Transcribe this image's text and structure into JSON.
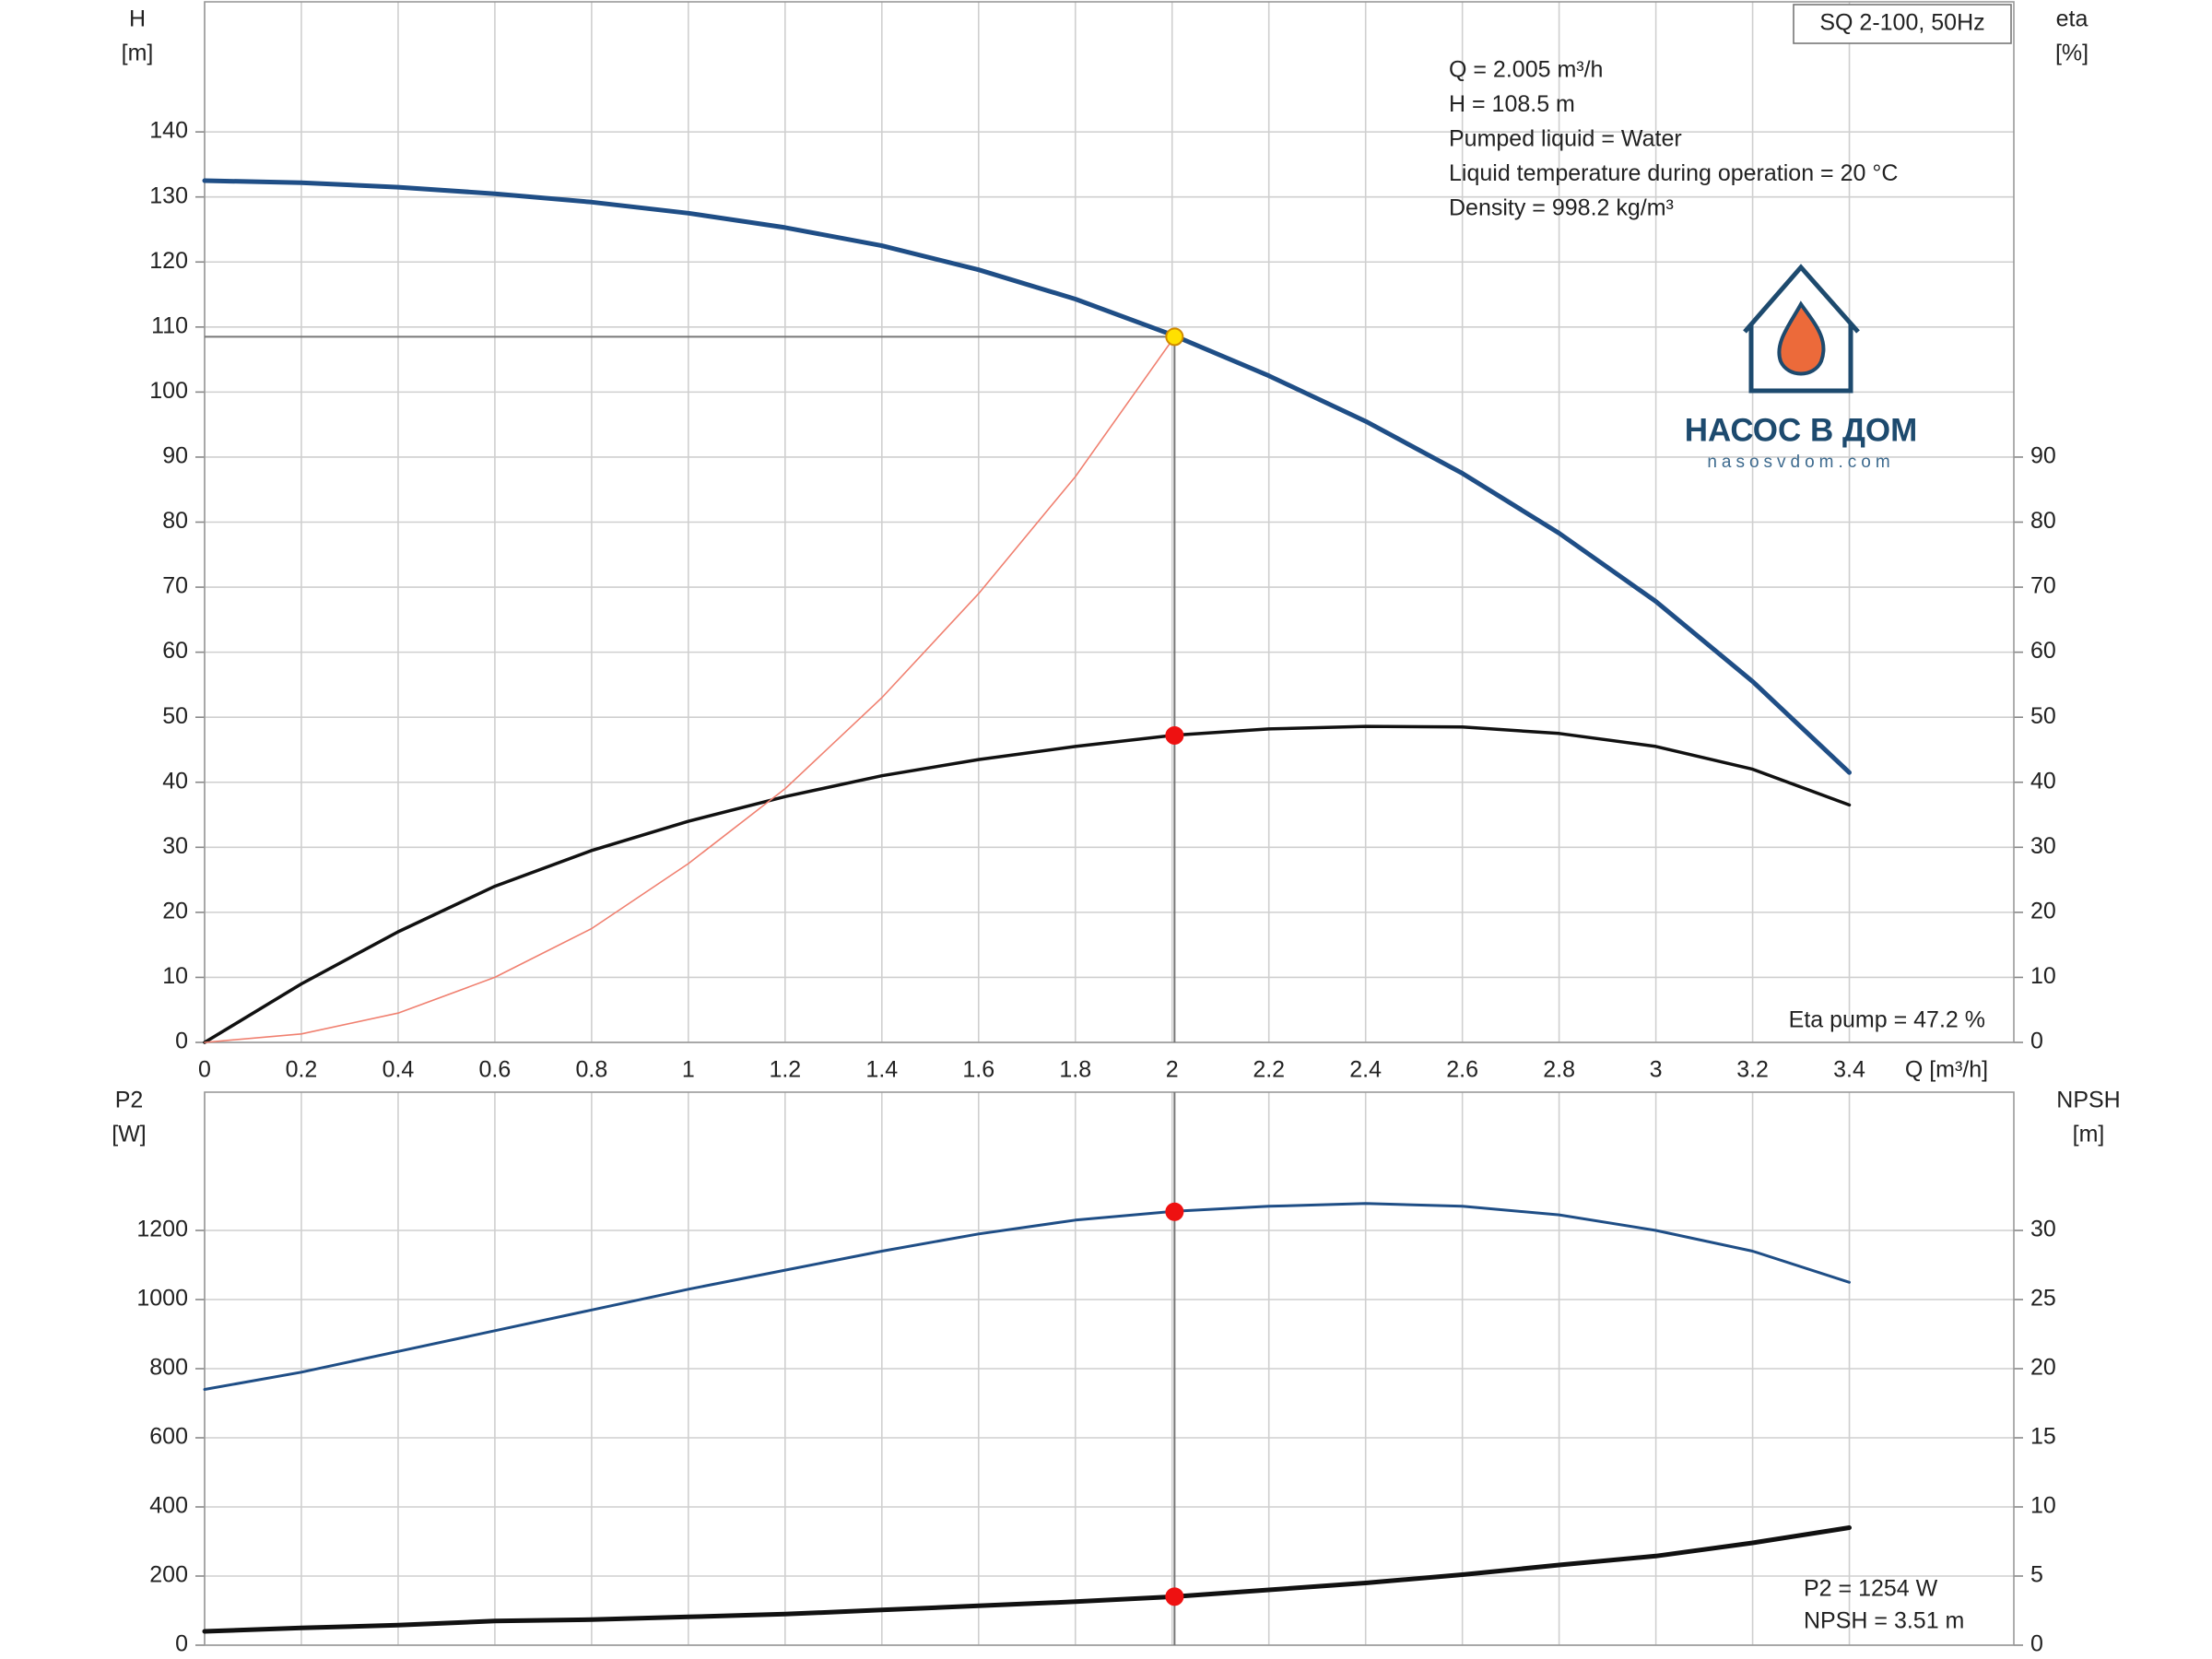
{
  "chart_data": [
    {
      "type": "line",
      "x_label": "Q [m³/h]",
      "y_label": [
        "H",
        "[m]"
      ],
      "y2_label": [
        "eta",
        "[%]"
      ],
      "model_label": "SQ 2-100, 50Hz",
      "annotations": [
        "Q = 2.005 m³/h",
        "H = 108.5 m",
        "Pumped liquid = Water",
        "Liquid temperature during operation = 20 °C",
        "Density = 998.2 kg/m³"
      ],
      "corner_annotations": [
        "Eta pump = 47.2 %"
      ],
      "x": [
        0,
        0.2,
        0.4,
        0.6,
        0.8,
        1.0,
        1.2,
        1.4,
        1.6,
        1.8,
        2.0,
        2.2,
        2.4,
        2.6,
        2.8,
        3.0,
        3.2,
        3.4
      ],
      "series": [
        {
          "color": "#1f4e86",
          "values": [
            132.5,
            132.2,
            131.5,
            130.5,
            129.2,
            127.5,
            125.3,
            122.5,
            118.8,
            114.3,
            108.8,
            102.5,
            95.5,
            87.5,
            78.3,
            67.8,
            55.5,
            41.5
          ]
        },
        {
          "color": "#111111",
          "axis": "y2",
          "values": [
            0,
            9,
            17,
            24,
            29.5,
            34,
            37.8,
            41,
            43.5,
            45.5,
            47.2,
            48.2,
            48.6,
            48.5,
            47.5,
            45.5,
            42,
            36.5
          ]
        },
        {
          "color": "#f08070",
          "x": [
            0,
            0.2,
            0.4,
            0.6,
            0.8,
            1.0,
            1.2,
            1.4,
            1.6,
            1.8,
            2.005
          ],
          "values": [
            0,
            1.3,
            4.5,
            10,
            17.5,
            27.5,
            39,
            53,
            69,
            87,
            108.5
          ]
        }
      ],
      "points": [
        {
          "x": 2.005,
          "value": 108.5,
          "color": "#ffe000"
        },
        {
          "x": 2.005,
          "value": 47.2,
          "color": "#ee1111",
          "axis": "y2"
        }
      ],
      "xlim": [
        0,
        3.74
      ],
      "xticks": [
        0,
        0.2,
        0.4,
        0.6,
        0.8,
        1.0,
        1.2,
        1.4,
        1.6,
        1.8,
        2.0,
        2.2,
        2.4,
        2.6,
        2.8,
        3.0,
        3.2,
        3.4
      ],
      "xtick_labels": true,
      "ylim": [
        0,
        160
      ],
      "yticks": [
        0,
        10,
        20,
        30,
        40,
        50,
        60,
        70,
        80,
        90,
        100,
        110,
        120,
        130,
        140
      ],
      "y2lim": [
        0,
        160
      ],
      "y2ticks": [
        0,
        10,
        20,
        30,
        40,
        50,
        60,
        70,
        80,
        90
      ],
      "grid": true
    },
    {
      "type": "line",
      "y_label": [
        "P2",
        "[W]"
      ],
      "y2_label": [
        "NPSH",
        "[m]"
      ],
      "corner_annotations": [
        "P2 = 1254 W",
        "NPSH = 3.51 m"
      ],
      "x": [
        0,
        0.2,
        0.4,
        0.6,
        0.8,
        1.0,
        1.2,
        1.4,
        1.6,
        1.8,
        2.0,
        2.2,
        2.4,
        2.6,
        2.8,
        3.0,
        3.2,
        3.4
      ],
      "series": [
        {
          "color": "#1f4e86",
          "values": [
            740,
            790,
            850,
            910,
            970,
            1030,
            1085,
            1140,
            1190,
            1230,
            1255,
            1270,
            1278,
            1270,
            1245,
            1200,
            1140,
            1050
          ]
        },
        {
          "color": "#111111",
          "axis": "y2",
          "values": [
            1.0,
            1.25,
            1.45,
            1.75,
            1.85,
            2.05,
            2.25,
            2.55,
            2.85,
            3.15,
            3.5,
            4.0,
            4.5,
            5.1,
            5.8,
            6.45,
            7.4,
            8.5
          ]
        }
      ],
      "points": [
        {
          "x": 2.005,
          "value": 1254,
          "color": "#ee1111"
        },
        {
          "x": 2.005,
          "value": 3.51,
          "color": "#ee1111",
          "axis": "y2"
        }
      ],
      "xlim": [
        0,
        3.74
      ],
      "xticks": [
        0,
        0.2,
        0.4,
        0.6,
        0.8,
        1.0,
        1.2,
        1.4,
        1.6,
        1.8,
        2.0,
        2.2,
        2.4,
        2.6,
        2.8,
        3.0,
        3.2,
        3.4
      ],
      "xtick_labels": false,
      "ylim": [
        0,
        1600
      ],
      "yticks": [
        0,
        200,
        400,
        600,
        800,
        1000,
        1200
      ],
      "y2lim": [
        0,
        40
      ],
      "y2ticks": [
        0,
        5,
        10,
        15,
        20,
        25,
        30
      ],
      "grid": true
    }
  ],
  "logo": {
    "name": "НАСОС В ДОМ",
    "url": "nasosvdom.com"
  }
}
